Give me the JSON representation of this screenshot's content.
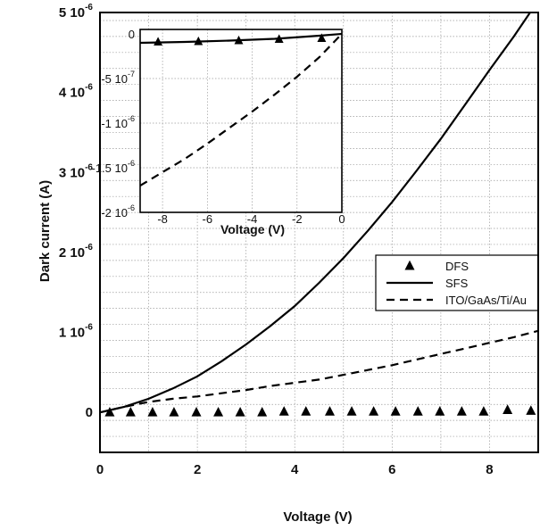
{
  "chart_data": [
    {
      "id": "main",
      "type": "line",
      "xlabel": "Voltage (V)",
      "ylabel": "Dark current (A)",
      "xlim": [
        0,
        9
      ],
      "ylim": [
        -5e-07,
        5e-06
      ],
      "grid": true,
      "xticks": [
        {
          "value": 0,
          "label": "0"
        },
        {
          "value": 2,
          "label": "2"
        },
        {
          "value": 4,
          "label": "4"
        },
        {
          "value": 6,
          "label": "6"
        },
        {
          "value": 8,
          "label": "8"
        }
      ],
      "yticks": [
        {
          "value": 0,
          "mant": "0",
          "exp": ""
        },
        {
          "value": 1e-06,
          "mant": "1 10",
          "exp": "-6"
        },
        {
          "value": 2e-06,
          "mant": "2 10",
          "exp": "-6"
        },
        {
          "value": 3e-06,
          "mant": "3 10",
          "exp": "-6"
        },
        {
          "value": 4e-06,
          "mant": "4 10",
          "exp": "-6"
        },
        {
          "value": 5e-06,
          "mant": "5 10",
          "exp": "-6"
        }
      ],
      "legend_position": "middle-right",
      "series": [
        {
          "name": "DFS",
          "style": "triangles",
          "x": [
            0.2,
            0.63,
            1.08,
            1.52,
            1.98,
            2.43,
            2.88,
            3.33,
            3.78,
            4.23,
            4.72,
            5.17,
            5.62,
            6.07,
            6.53,
            6.98,
            7.43,
            7.88,
            8.37,
            8.85
          ],
          "y": [
            0,
            0,
            0,
            0,
            0,
            0,
            0,
            0,
            1e-08,
            1e-08,
            1e-08,
            1e-08,
            1e-08,
            1e-08,
            1e-08,
            1e-08,
            1e-08,
            1e-08,
            3e-08,
            2e-08
          ]
        },
        {
          "name": "SFS",
          "style": "solid",
          "x": [
            0,
            0.5,
            1,
            1.5,
            2,
            2.5,
            3,
            3.5,
            4,
            4.5,
            5,
            5.5,
            6,
            6.5,
            7,
            7.5,
            8,
            8.5,
            9
          ],
          "y": [
            0,
            7e-08,
            1.7e-07,
            3e-07,
            4.5e-07,
            6.4e-07,
            8.5e-07,
            1.08e-06,
            1.33e-06,
            1.62e-06,
            1.93e-06,
            2.27e-06,
            2.63e-06,
            3.02e-06,
            3.42e-06,
            3.85e-06,
            4.28e-06,
            4.7e-06,
            5.15e-06
          ]
        },
        {
          "name": "ITO/GaAs/Ti/Au",
          "style": "dashed",
          "x": [
            0,
            0.5,
            1,
            1.5,
            2,
            2.5,
            3,
            3.5,
            4,
            4.5,
            5,
            5.5,
            6,
            6.5,
            7,
            7.5,
            8,
            8.5,
            9
          ],
          "y": [
            0,
            7e-08,
            1.3e-07,
            1.7e-07,
            2e-07,
            2.4e-07,
            2.8e-07,
            3.3e-07,
            3.7e-07,
            4.1e-07,
            4.7e-07,
            5.3e-07,
            5.9e-07,
            6.6e-07,
            7.3e-07,
            8e-07,
            8.7e-07,
            9.4e-07,
            1.02e-06
          ]
        }
      ]
    },
    {
      "id": "inset",
      "type": "line",
      "xlabel": "Voltage (V)",
      "ylabel": "",
      "xlim": [
        -9,
        0
      ],
      "ylim": [
        -2e-06,
        5e-08
      ],
      "grid": true,
      "xticks": [
        {
          "value": -8,
          "label": "-8"
        },
        {
          "value": -6,
          "label": "-6"
        },
        {
          "value": -4,
          "label": "-4"
        },
        {
          "value": -2,
          "label": "-2"
        },
        {
          "value": 0,
          "label": "0"
        }
      ],
      "yticks": [
        {
          "value": 0,
          "mant": "0",
          "exp": ""
        },
        {
          "value": -5e-07,
          "mant": "-5 10",
          "exp": "-7"
        },
        {
          "value": -1e-06,
          "mant": "-1 10",
          "exp": "-6"
        },
        {
          "value": -1.5e-06,
          "mant": "-1.5 10",
          "exp": "-6"
        },
        {
          "value": -2e-06,
          "mant": "-2 10",
          "exp": "-6"
        }
      ],
      "series": [
        {
          "name": "DFS",
          "style": "triangles",
          "x": [
            -8.2,
            -6.4,
            -4.6,
            -2.8,
            -0.9
          ],
          "y": [
            -9e-08,
            -8.5e-08,
            -7.5e-08,
            -6e-08,
            -5e-08
          ]
        },
        {
          "name": "SFS",
          "style": "solid",
          "x": [
            -9,
            -7,
            -5,
            -3,
            -1,
            0
          ],
          "y": [
            -1e-07,
            -9e-08,
            -7.5e-08,
            -5.5e-08,
            -2e-08,
            0
          ]
        },
        {
          "name": "ITO/GaAs/Ti/Au",
          "style": "dashed",
          "x": [
            -9,
            -8,
            -7,
            -6,
            -5,
            -4,
            -3,
            -2,
            -1,
            -0.5,
            0
          ],
          "y": [
            -1.7e-06,
            -1.55e-06,
            -1.4e-06,
            -1.23e-06,
            -1.05e-06,
            -8.7e-07,
            -6.8e-07,
            -4.8e-07,
            -2.6e-07,
            -1.3e-07,
            0
          ]
        }
      ]
    }
  ]
}
